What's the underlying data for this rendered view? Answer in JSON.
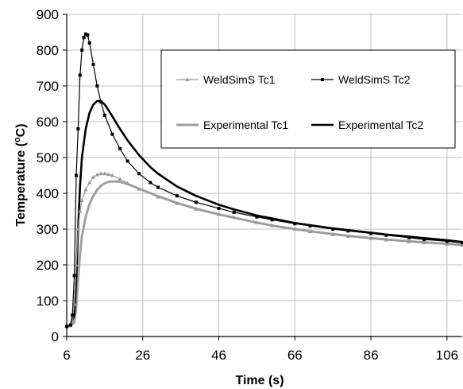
{
  "chart_data": {
    "type": "line",
    "title": "",
    "xlabel": "Time (s)",
    "ylabel_main": "Temperature (",
    "ylabel_sup": "o",
    "ylabel_end": "C)",
    "xlim": [
      6,
      110
    ],
    "ylim": [
      0,
      900
    ],
    "xticks": [
      6,
      26,
      46,
      66,
      86,
      106
    ],
    "yticks": [
      0,
      100,
      200,
      300,
      400,
      500,
      600,
      700,
      800,
      900
    ],
    "grid": true,
    "legend_position": "top-right",
    "series": [
      {
        "name": "WeldSimS Tc1",
        "color": "#999999",
        "line_width": 1.2,
        "marker": "triangle",
        "x": [
          6,
          7,
          7.5,
          8,
          8.5,
          9,
          9.5,
          10,
          11,
          12,
          13,
          14,
          15,
          16,
          17,
          18,
          20,
          22,
          25,
          30,
          35,
          40,
          46,
          50,
          56,
          60,
          66,
          70,
          76,
          80,
          86,
          90,
          96,
          100,
          106,
          110
        ],
        "y": [
          28,
          30,
          40,
          90,
          200,
          300,
          350,
          380,
          410,
          430,
          445,
          452,
          455,
          455,
          453,
          450,
          440,
          428,
          412,
          390,
          372,
          356,
          342,
          333,
          318,
          310,
          300,
          293,
          285,
          280,
          274,
          270,
          265,
          262,
          258,
          255
        ]
      },
      {
        "name": "WeldSimS Tc2",
        "color": "#000000",
        "line_width": 1.2,
        "marker": "square",
        "x": [
          6,
          7,
          7.5,
          8,
          8.5,
          9,
          9.5,
          10,
          10.5,
          11,
          11.5,
          12,
          13,
          14,
          15,
          16,
          18,
          20,
          22,
          25,
          28,
          30,
          35,
          40,
          46,
          50,
          56,
          60,
          66,
          70,
          76,
          80,
          86,
          90,
          96,
          100,
          106,
          110
        ],
        "y": [
          28,
          32,
          60,
          170,
          450,
          580,
          730,
          800,
          835,
          845,
          842,
          820,
          760,
          700,
          655,
          618,
          565,
          525,
          490,
          455,
          430,
          417,
          393,
          375,
          358,
          347,
          334,
          326,
          315,
          309,
          300,
          295,
          288,
          283,
          276,
          271,
          266,
          262
        ]
      },
      {
        "name": "Experimental Tc1",
        "color": "#a0a0a0",
        "line_width": 3,
        "marker": "none",
        "x": [
          6,
          7,
          8,
          8.5,
          9,
          9.5,
          10,
          11,
          12,
          13,
          14,
          15,
          16,
          17,
          18,
          19,
          20,
          22,
          25,
          30,
          35,
          40,
          46,
          50,
          56,
          60,
          66,
          70,
          76,
          80,
          86,
          90,
          96,
          100,
          106,
          110
        ],
        "y": [
          28,
          30,
          40,
          80,
          160,
          230,
          280,
          335,
          370,
          393,
          410,
          421,
          428,
          432,
          433,
          433,
          432,
          426,
          413,
          392,
          373,
          357,
          341,
          332,
          318,
          310,
          300,
          294,
          286,
          281,
          275,
          271,
          266,
          263,
          259,
          256
        ]
      },
      {
        "name": "Experimental Tc2",
        "color": "#000000",
        "line_width": 2.6,
        "marker": "none",
        "x": [
          6,
          7,
          8,
          8.5,
          9,
          9.5,
          10,
          11,
          12,
          13,
          14,
          15,
          16,
          17,
          18,
          20,
          22,
          25,
          28,
          30,
          35,
          40,
          46,
          50,
          56,
          60,
          66,
          70,
          76,
          80,
          86,
          90,
          96,
          100,
          106,
          110
        ],
        "y": [
          28,
          32,
          60,
          160,
          300,
          420,
          500,
          580,
          625,
          648,
          658,
          657,
          648,
          632,
          615,
          580,
          548,
          507,
          473,
          455,
          419,
          393,
          368,
          355,
          338,
          330,
          317,
          311,
          302,
          297,
          290,
          285,
          279,
          275,
          269,
          264
        ]
      }
    ]
  }
}
